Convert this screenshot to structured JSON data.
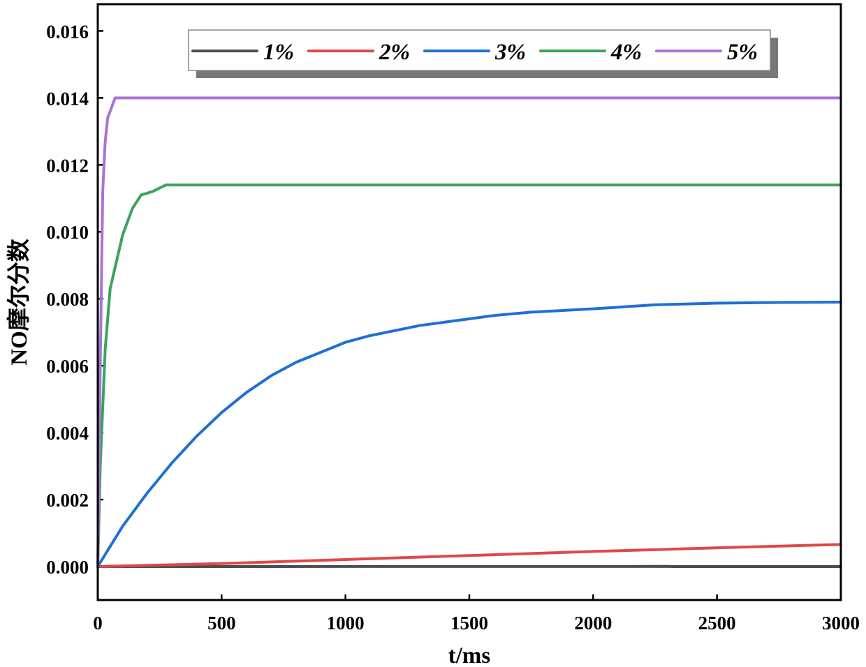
{
  "chart_data": {
    "type": "line",
    "title": "",
    "xlabel": "t/ms",
    "ylabel": "NO摩尔分数",
    "xlim": [
      0,
      3000
    ],
    "ylim": [
      -0.001,
      0.0168
    ],
    "x_ticks": [
      0,
      500,
      1000,
      1500,
      2000,
      2500,
      3000
    ],
    "x_tick_labels": [
      "0",
      "500",
      "1000",
      "1500",
      "2000",
      "2500",
      "3000"
    ],
    "y_ticks": [
      0,
      0.002,
      0.004,
      0.006,
      0.008,
      0.01,
      0.012,
      0.014,
      0.016
    ],
    "y_tick_labels": [
      "0.000",
      "0.002",
      "0.004",
      "0.006",
      "0.008",
      "0.010",
      "0.012",
      "0.014",
      "0.016"
    ],
    "grid": false,
    "legend_position": "top",
    "series": [
      {
        "name": "1%",
        "color": "#4d4d4d",
        "points": [
          [
            0,
            0
          ],
          [
            1000,
            2e-06
          ],
          [
            2000,
            3e-06
          ],
          [
            2300,
            6e-06
          ],
          [
            2320,
            0
          ],
          [
            3000,
            0
          ]
        ]
      },
      {
        "name": "2%",
        "color": "#e04848",
        "points": [
          [
            0,
            0
          ],
          [
            500,
            9e-05
          ],
          [
            1000,
            0.00021
          ],
          [
            1500,
            0.00033
          ],
          [
            2000,
            0.00045
          ],
          [
            2500,
            0.00056
          ],
          [
            3000,
            0.00066
          ]
        ]
      },
      {
        "name": "3%",
        "color": "#1f6fd6",
        "points": [
          [
            0,
            0
          ],
          [
            100,
            0.0012
          ],
          [
            200,
            0.0022
          ],
          [
            300,
            0.0031
          ],
          [
            400,
            0.0039
          ],
          [
            500,
            0.0046
          ],
          [
            600,
            0.0052
          ],
          [
            700,
            0.0057
          ],
          [
            800,
            0.0061
          ],
          [
            900,
            0.0064
          ],
          [
            1000,
            0.0067
          ],
          [
            1100,
            0.0069
          ],
          [
            1200,
            0.00705
          ],
          [
            1300,
            0.0072
          ],
          [
            1400,
            0.0073
          ],
          [
            1500,
            0.0074
          ],
          [
            1600,
            0.0075
          ],
          [
            1750,
            0.0076
          ],
          [
            2000,
            0.0077
          ],
          [
            2250,
            0.00782
          ],
          [
            2500,
            0.00787
          ],
          [
            2750,
            0.00789
          ],
          [
            3000,
            0.0079
          ]
        ]
      },
      {
        "name": "4%",
        "color": "#3aa45c",
        "points": [
          [
            0,
            0
          ],
          [
            10,
            0.003
          ],
          [
            30,
            0.0065
          ],
          [
            50,
            0.0083
          ],
          [
            100,
            0.0099
          ],
          [
            140,
            0.0107
          ],
          [
            175,
            0.0111
          ],
          [
            220,
            0.0112
          ],
          [
            275,
            0.0114
          ],
          [
            3000,
            0.0114
          ]
        ]
      },
      {
        "name": "5%",
        "color": "#a874d6",
        "points": [
          [
            0,
            0
          ],
          [
            10,
            0.006
          ],
          [
            20,
            0.0112
          ],
          [
            30,
            0.0127
          ],
          [
            40,
            0.0134
          ],
          [
            55,
            0.0137
          ],
          [
            70,
            0.014
          ],
          [
            3000,
            0.014
          ]
        ]
      }
    ]
  }
}
